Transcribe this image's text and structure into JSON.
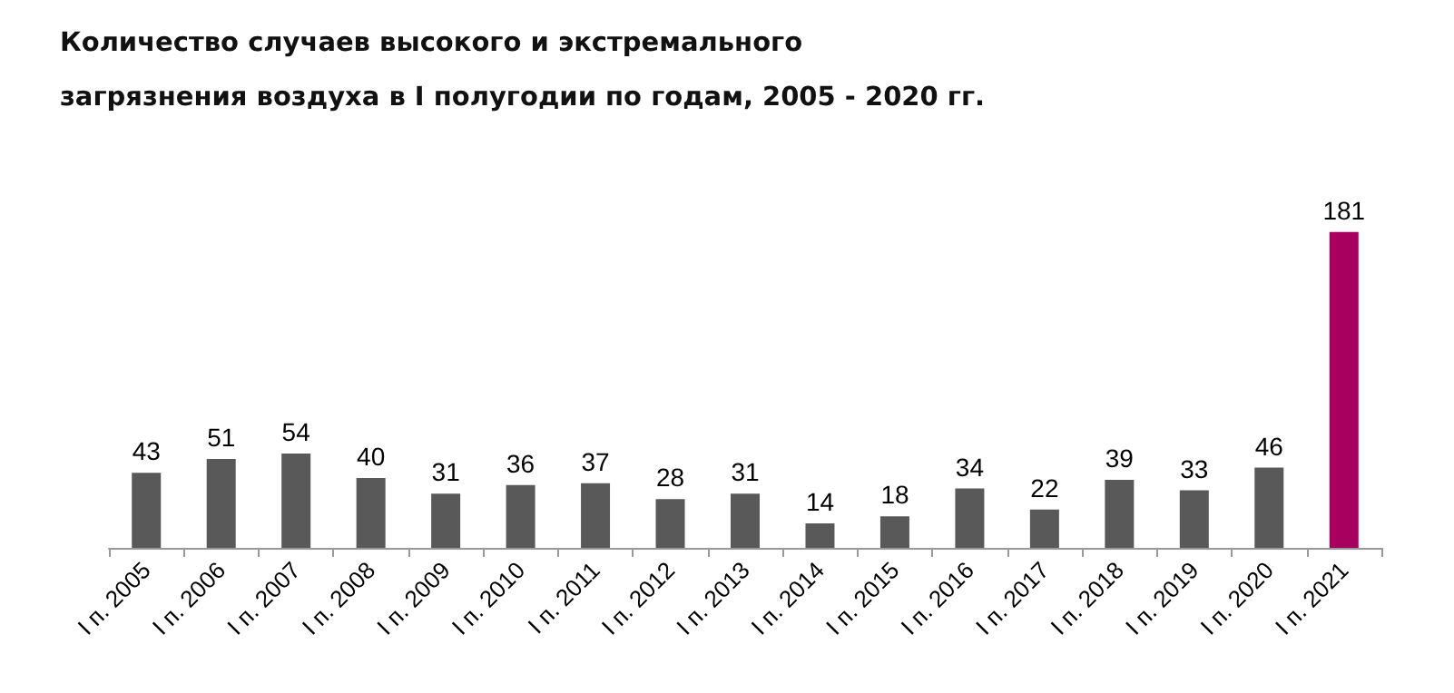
{
  "chart_data": {
    "type": "bar",
    "title": "Количество случаев высокого и экстремального загрязнения воздуха в I полугодии по годам, 2005 - 2020 гг.",
    "categories": [
      "I п. 2005",
      "I п. 2006",
      "I п. 2007",
      "I п. 2008",
      "I п. 2009",
      "I п. 2010",
      "I п. 2011",
      "I п. 2012",
      "I п. 2013",
      "I п. 2014",
      "I п. 2015",
      "I п. 2016",
      "I п. 2017",
      "I п. 2018",
      "I п. 2019",
      "I п. 2020",
      "I п. 2021"
    ],
    "values": [
      43,
      51,
      54,
      40,
      31,
      36,
      37,
      28,
      31,
      14,
      18,
      34,
      22,
      39,
      33,
      46,
      181
    ],
    "colors": [
      "#595959",
      "#595959",
      "#595959",
      "#595959",
      "#595959",
      "#595959",
      "#595959",
      "#595959",
      "#595959",
      "#595959",
      "#595959",
      "#595959",
      "#595959",
      "#595959",
      "#595959",
      "#595959",
      "#a8005f"
    ],
    "data_labels": true
  }
}
